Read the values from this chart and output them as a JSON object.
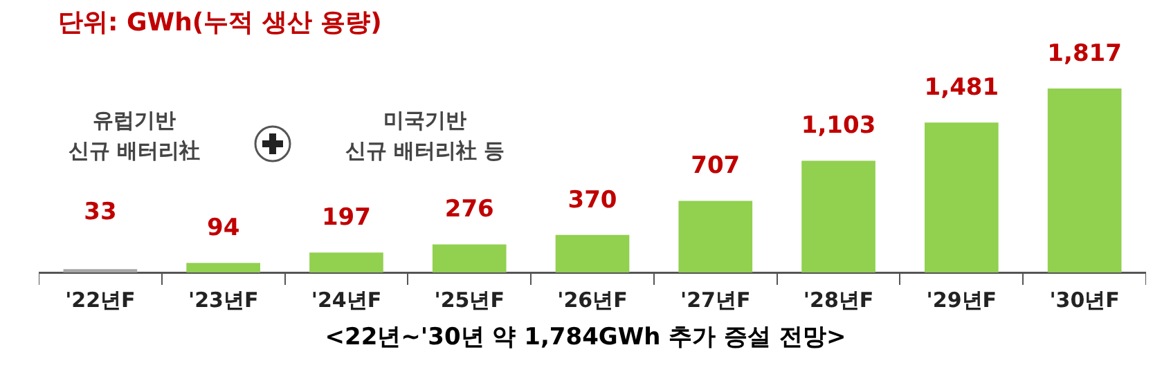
{
  "chart_data": {
    "type": "bar",
    "title": "단위: GWh(누적 생산 용량)",
    "categories": [
      "'22년F",
      "'23년F",
      "'24년F",
      "'25년F",
      "'26년F",
      "'27년F",
      "'28년F",
      "'29년F",
      "'30년F"
    ],
    "values": [
      33,
      94,
      197,
      276,
      370,
      707,
      1103,
      1481,
      1817
    ],
    "colors": [
      "#a6a6a6",
      "#92d050",
      "#92d050",
      "#92d050",
      "#92d050",
      "#92d050",
      "#92d050",
      "#92d050",
      "#92d050"
    ],
    "value_labels": [
      "33",
      "94",
      "197",
      "276",
      "370",
      "707",
      "1,103",
      "1,481",
      "1,817"
    ],
    "grid": false,
    "legend": false,
    "annotations": [
      "유럽기반\n신규 배터리社",
      "미국기반\n신규 배터리社 등",
      "<22년~'30년 약 1,784GWh 추가 증설 전망>"
    ]
  }
}
